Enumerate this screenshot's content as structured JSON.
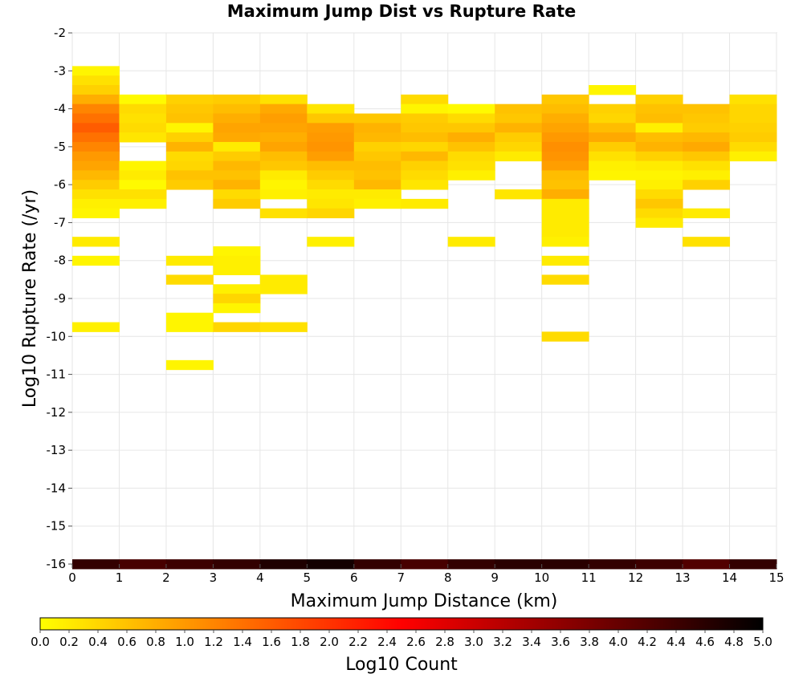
{
  "chart_data": {
    "type": "heatmap",
    "title": "Maximum Jump Dist vs Rupture Rate",
    "xlabel": "Maximum Jump Distance (km)",
    "ylabel": "Log10 Rupture Rate (/yr)",
    "xlim": [
      0,
      15
    ],
    "ylim": [
      -16,
      -2
    ],
    "x_ticks": [
      0,
      1,
      2,
      3,
      4,
      5,
      6,
      7,
      8,
      9,
      10,
      11,
      12,
      13,
      14,
      15
    ],
    "y_ticks": [
      -2,
      -3,
      -4,
      -5,
      -6,
      -7,
      -8,
      -9,
      -10,
      -11,
      -12,
      -13,
      -14,
      -15,
      -16
    ],
    "x_bin_width": 1,
    "y_bin_height": 0.25,
    "grid": true,
    "colorbar": {
      "label": "Log10 Count",
      "range": [
        0,
        5
      ],
      "ticks": [
        "0.0",
        "0.2",
        "0.4",
        "0.6",
        "0.8",
        "1.0",
        "1.2",
        "1.4",
        "1.6",
        "1.8",
        "2.0",
        "2.2",
        "2.4",
        "2.6",
        "2.8",
        "3.0",
        "3.2",
        "3.4",
        "3.6",
        "3.8",
        "4.0",
        "4.2",
        "4.4",
        "4.6",
        "4.8",
        "5.0"
      ],
      "colors": [
        "#ffff00",
        "#ff8000",
        "#ff0000",
        "#800000",
        "#000000"
      ]
    },
    "columns": [
      {
        "x": 0,
        "cells": [
          [
            -3.0,
            0.1
          ],
          [
            -3.25,
            0.3
          ],
          [
            -3.5,
            0.45
          ],
          [
            -3.75,
            0.8
          ],
          [
            -4.0,
            1.2
          ],
          [
            -4.25,
            1.4
          ],
          [
            -4.5,
            1.6
          ],
          [
            -4.75,
            1.4
          ],
          [
            -5.0,
            1.2
          ],
          [
            -5.25,
            1.0
          ],
          [
            -5.5,
            0.9
          ],
          [
            -5.75,
            0.7
          ],
          [
            -6.0,
            0.5
          ],
          [
            -6.25,
            0.3
          ],
          [
            -6.5,
            0.15
          ],
          [
            -6.75,
            0.1
          ],
          [
            -7.5,
            0.2
          ],
          [
            -8.0,
            0.1
          ],
          [
            -9.75,
            0.15
          ],
          [
            -16.0,
            4.5
          ]
        ]
      },
      {
        "x": 1,
        "cells": [
          [
            -3.75,
            0.05
          ],
          [
            -4.0,
            0.35
          ],
          [
            -4.25,
            0.3
          ],
          [
            -4.5,
            0.35
          ],
          [
            -4.75,
            0.25
          ],
          [
            -5.5,
            0.1
          ],
          [
            -5.75,
            0.2
          ],
          [
            -6.0,
            0.05
          ],
          [
            -6.25,
            0.3
          ],
          [
            -6.5,
            0.15
          ],
          [
            -16.0,
            4.3
          ]
        ]
      },
      {
        "x": 2,
        "cells": [
          [
            -3.75,
            0.45
          ],
          [
            -4.0,
            0.55
          ],
          [
            -4.25,
            0.6
          ],
          [
            -4.5,
            0.1
          ],
          [
            -4.75,
            0.45
          ],
          [
            -5.0,
            0.75
          ],
          [
            -5.25,
            0.35
          ],
          [
            -5.5,
            0.4
          ],
          [
            -5.75,
            0.6
          ],
          [
            -6.0,
            0.5
          ],
          [
            -8.0,
            0.2
          ],
          [
            -8.5,
            0.35
          ],
          [
            -9.5,
            0.1
          ],
          [
            -9.75,
            0.1
          ],
          [
            -10.75,
            0.1
          ],
          [
            -16.0,
            4.4
          ]
        ]
      },
      {
        "x": 3,
        "cells": [
          [
            -3.75,
            0.5
          ],
          [
            -4.0,
            0.65
          ],
          [
            -4.25,
            0.8
          ],
          [
            -4.5,
            0.9
          ],
          [
            -4.75,
            0.85
          ],
          [
            -5.0,
            0.2
          ],
          [
            -5.25,
            0.5
          ],
          [
            -5.5,
            0.7
          ],
          [
            -5.75,
            0.6
          ],
          [
            -6.0,
            0.75
          ],
          [
            -6.25,
            0.35
          ],
          [
            -6.5,
            0.5
          ],
          [
            -7.75,
            0.1
          ],
          [
            -8.0,
            0.15
          ],
          [
            -8.25,
            0.15
          ],
          [
            -8.75,
            0.15
          ],
          [
            -9.0,
            0.4
          ],
          [
            -9.25,
            0.1
          ],
          [
            -9.75,
            0.4
          ],
          [
            -16.0,
            4.5
          ]
        ]
      },
      {
        "x": 4,
        "cells": [
          [
            -3.75,
            0.3
          ],
          [
            -4.0,
            0.85
          ],
          [
            -4.25,
            0.95
          ],
          [
            -4.5,
            0.9
          ],
          [
            -4.75,
            0.8
          ],
          [
            -5.0,
            0.9
          ],
          [
            -5.25,
            0.65
          ],
          [
            -5.5,
            0.55
          ],
          [
            -5.75,
            0.2
          ],
          [
            -6.0,
            0.1
          ],
          [
            -6.25,
            0.15
          ],
          [
            -6.75,
            0.3
          ],
          [
            -8.5,
            0.2
          ],
          [
            -8.75,
            0.2
          ],
          [
            -9.75,
            0.3
          ],
          [
            -16.0,
            4.7
          ]
        ]
      },
      {
        "x": 5,
        "cells": [
          [
            -4.0,
            0.25
          ],
          [
            -4.25,
            0.55
          ],
          [
            -4.5,
            0.95
          ],
          [
            -4.75,
            1.0
          ],
          [
            -5.0,
            1.05
          ],
          [
            -5.25,
            0.95
          ],
          [
            -5.5,
            0.65
          ],
          [
            -5.75,
            0.5
          ],
          [
            -6.0,
            0.35
          ],
          [
            -6.25,
            0.2
          ],
          [
            -6.5,
            0.25
          ],
          [
            -6.75,
            0.4
          ],
          [
            -7.5,
            0.15
          ],
          [
            -16.0,
            4.8
          ]
        ]
      },
      {
        "x": 6,
        "cells": [
          [
            -4.25,
            0.55
          ],
          [
            -4.5,
            0.75
          ],
          [
            -4.75,
            0.7
          ],
          [
            -5.0,
            0.45
          ],
          [
            -5.25,
            0.55
          ],
          [
            -5.5,
            0.65
          ],
          [
            -5.75,
            0.6
          ],
          [
            -6.0,
            0.7
          ],
          [
            -6.25,
            0.2
          ],
          [
            -6.5,
            0.15
          ],
          [
            -16.0,
            4.5
          ]
        ]
      },
      {
        "x": 7,
        "cells": [
          [
            -3.75,
            0.35
          ],
          [
            -4.0,
            0.1
          ],
          [
            -4.25,
            0.5
          ],
          [
            -4.5,
            0.55
          ],
          [
            -4.75,
            0.65
          ],
          [
            -5.0,
            0.4
          ],
          [
            -5.25,
            0.7
          ],
          [
            -5.5,
            0.45
          ],
          [
            -5.75,
            0.35
          ],
          [
            -6.0,
            0.25
          ],
          [
            -6.5,
            0.2
          ],
          [
            -16.0,
            4.3
          ]
        ]
      },
      {
        "x": 8,
        "cells": [
          [
            -4.0,
            0.05
          ],
          [
            -4.25,
            0.35
          ],
          [
            -4.5,
            0.55
          ],
          [
            -4.75,
            0.8
          ],
          [
            -5.0,
            0.6
          ],
          [
            -5.25,
            0.35
          ],
          [
            -5.5,
            0.3
          ],
          [
            -5.75,
            0.15
          ],
          [
            -7.5,
            0.2
          ],
          [
            -16.0,
            4.5
          ]
        ]
      },
      {
        "x": 9,
        "cells": [
          [
            -4.0,
            0.6
          ],
          [
            -4.25,
            0.55
          ],
          [
            -4.5,
            0.75
          ],
          [
            -4.75,
            0.5
          ],
          [
            -5.0,
            0.4
          ],
          [
            -5.25,
            0.2
          ],
          [
            -6.25,
            0.25
          ],
          [
            -16.0,
            4.6
          ]
        ]
      },
      {
        "x": 10,
        "cells": [
          [
            -3.75,
            0.55
          ],
          [
            -4.0,
            0.65
          ],
          [
            -4.25,
            0.8
          ],
          [
            -4.5,
            0.9
          ],
          [
            -4.75,
            1.0
          ],
          [
            -5.0,
            1.1
          ],
          [
            -5.25,
            1.05
          ],
          [
            -5.5,
            0.95
          ],
          [
            -5.75,
            0.65
          ],
          [
            -6.0,
            0.6
          ],
          [
            -6.25,
            0.8
          ],
          [
            -6.5,
            0.2
          ],
          [
            -6.75,
            0.2
          ],
          [
            -7.0,
            0.2
          ],
          [
            -7.25,
            0.2
          ],
          [
            -7.5,
            0.15
          ],
          [
            -8.0,
            0.2
          ],
          [
            -8.5,
            0.35
          ],
          [
            -10.0,
            0.35
          ],
          [
            -16.0,
            4.6
          ]
        ]
      },
      {
        "x": 11,
        "cells": [
          [
            -3.5,
            0.1
          ],
          [
            -4.0,
            0.45
          ],
          [
            -4.25,
            0.4
          ],
          [
            -4.5,
            0.65
          ],
          [
            -4.75,
            0.85
          ],
          [
            -5.0,
            0.5
          ],
          [
            -5.25,
            0.3
          ],
          [
            -5.5,
            0.15
          ],
          [
            -5.75,
            0.1
          ],
          [
            -16.0,
            4.5
          ]
        ]
      },
      {
        "x": 12,
        "cells": [
          [
            -3.75,
            0.45
          ],
          [
            -4.0,
            0.6
          ],
          [
            -4.25,
            0.65
          ],
          [
            -4.5,
            0.15
          ],
          [
            -4.75,
            0.65
          ],
          [
            -5.0,
            0.75
          ],
          [
            -5.25,
            0.45
          ],
          [
            -5.5,
            0.2
          ],
          [
            -5.75,
            0.1
          ],
          [
            -6.0,
            0.15
          ],
          [
            -6.25,
            0.35
          ],
          [
            -6.5,
            0.55
          ],
          [
            -6.75,
            0.35
          ],
          [
            -7.0,
            0.2
          ],
          [
            -16.0,
            4.4
          ]
        ]
      },
      {
        "x": 13,
        "cells": [
          [
            -4.0,
            0.6
          ],
          [
            -4.25,
            0.55
          ],
          [
            -4.5,
            0.5
          ],
          [
            -4.75,
            0.7
          ],
          [
            -5.0,
            0.85
          ],
          [
            -5.25,
            0.55
          ],
          [
            -5.5,
            0.3
          ],
          [
            -5.75,
            0.15
          ],
          [
            -6.0,
            0.45
          ],
          [
            -6.75,
            0.2
          ],
          [
            -7.5,
            0.3
          ],
          [
            -16.0,
            4.2
          ]
        ]
      },
      {
        "x": 14,
        "cells": [
          [
            -3.75,
            0.3
          ],
          [
            -4.0,
            0.4
          ],
          [
            -4.25,
            0.4
          ],
          [
            -4.5,
            0.45
          ],
          [
            -4.75,
            0.5
          ],
          [
            -5.0,
            0.35
          ],
          [
            -5.25,
            0.15
          ],
          [
            -16.0,
            4.5
          ]
        ]
      }
    ]
  }
}
